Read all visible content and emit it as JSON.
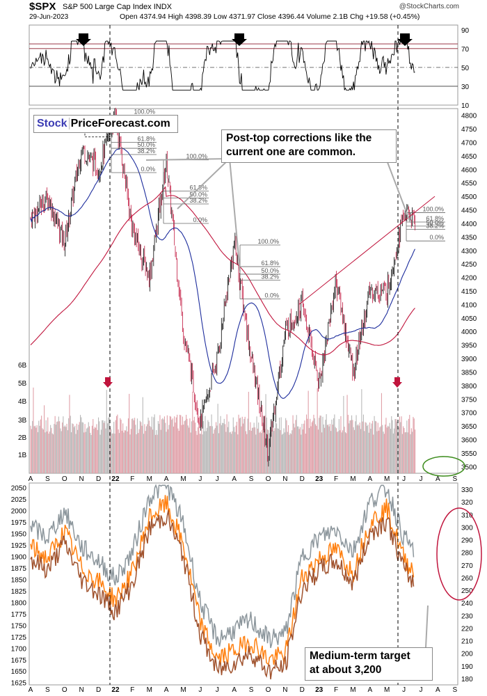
{
  "header": {
    "symbol": "$SPX",
    "name": "S&P 500 Large Cap Index",
    "exchange": "INDX",
    "date": "29-Jun-2023",
    "ohlc": "Open 4374.94   High 4398.39   Low 4371.97   Close 4396.44   Volume 2.1B   Chg +19.58 (+0.45%)",
    "brand": "@StockCharts.com"
  },
  "logo": {
    "stock": "Stock",
    "pf": "PriceForecast.com"
  },
  "callouts": {
    "post_top": "Post-top corrections like the current one are common.",
    "post_top_line1": "Post-top corrections like the",
    "post_top_line2": "current one are common.",
    "target_line1": "Medium-term target",
    "target_line2": "at about 3,200"
  },
  "fib_labels": [
    "100.0%",
    "61.8%",
    "50.0%",
    "38.2%",
    "0.0%"
  ],
  "colors": {
    "price_up": "#000000",
    "price_down": "#c0143c",
    "ma50": "#1c2c9c",
    "ma200": "#c0143c",
    "rsi_line": "#000000",
    "orange": "#ff7f0e",
    "gray": "#8c969c",
    "brown": "#a0522d",
    "ellipse_green": "#3c8c1c",
    "ellipse_red": "#c0143c"
  },
  "icons": [
    "arrow-down-icon",
    "red-arrow-down-icon"
  ],
  "chart_data": [
    {
      "type": "line",
      "panel": "RSI",
      "yticks": [
        90,
        70,
        50,
        30,
        10
      ],
      "ylim": [
        10,
        95
      ],
      "levels": [
        75,
        70,
        50,
        30
      ],
      "markers": [
        "top-arrow",
        "top-arrow",
        "top-arrow"
      ]
    },
    {
      "type": "candlestick",
      "panel": "price",
      "title": "$SPX",
      "yticks": [
        4800,
        4750,
        4700,
        4650,
        4600,
        4550,
        4500,
        4450,
        4400,
        4350,
        4300,
        4250,
        4200,
        4150,
        4100,
        4050,
        4000,
        3950,
        3900,
        3850,
        3800,
        3750,
        3700,
        3650,
        3600,
        3550,
        3500
      ],
      "ylim": [
        3475,
        4825
      ],
      "volume_ticks": [
        "6B",
        "5B",
        "4B",
        "3B",
        "2B",
        "1B"
      ],
      "x_ticks": [
        "A",
        "S",
        "O",
        "N",
        "D",
        "22",
        "F",
        "M",
        "A",
        "M",
        "J",
        "J",
        "A",
        "S",
        "O",
        "N",
        "D",
        "23",
        "F",
        "M",
        "A",
        "M",
        "J",
        "J",
        "A",
        "S"
      ],
      "approx_path": [
        [
          "Aug-21",
          4420
        ],
        [
          "Sep-21",
          4500
        ],
        [
          "Oct-21",
          4330
        ],
        [
          "Nov-21",
          4680
        ],
        [
          "Dec-21",
          4600
        ],
        [
          "Jan-22",
          4800
        ],
        [
          "Feb-22",
          4380
        ],
        [
          "Mar-22",
          4200
        ],
        [
          "Apr-22",
          4630
        ],
        [
          "May-22",
          4000
        ],
        [
          "Jun-22",
          3660
        ],
        [
          "Jul-22",
          3900
        ],
        [
          "Aug-22",
          4330
        ],
        [
          "Sep-22",
          3900
        ],
        [
          "Oct-22",
          3550
        ],
        [
          "Nov-22",
          4000
        ],
        [
          "Dec-22",
          4100
        ],
        [
          "Jan-23",
          3810
        ],
        [
          "Feb-23",
          4190
        ],
        [
          "Mar-23",
          3850
        ],
        [
          "Apr-23",
          4150
        ],
        [
          "May-23",
          4150
        ],
        [
          "Jun-23",
          4440
        ],
        [
          "29-Jun-23",
          4396
        ]
      ]
    },
    {
      "type": "line",
      "panel": "bottom",
      "left_ticks": [
        2050,
        2025,
        2000,
        1975,
        1950,
        1925,
        1900,
        1875,
        1850,
        1825,
        1800,
        1775,
        1750,
        1725,
        1700,
        1675,
        1650,
        1625
      ],
      "right_ticks": [
        330,
        320,
        310,
        300,
        290,
        280,
        270,
        260,
        250,
        240,
        230,
        220,
        210,
        200,
        190,
        180
      ],
      "left_ylim": [
        1620,
        2060
      ],
      "right_ylim": [
        175,
        335
      ]
    }
  ]
}
